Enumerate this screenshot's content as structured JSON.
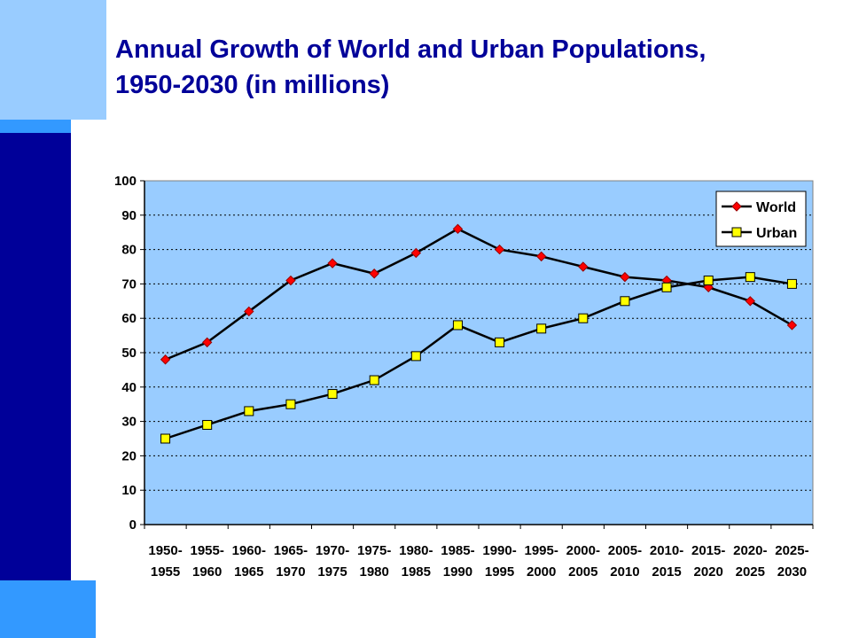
{
  "slide": {
    "title_line1": "Annual Growth of World and Urban Populations,",
    "title_line2": "1950-2030 (in millions)"
  },
  "colors": {
    "side_bar": "#000099",
    "block_light": "#99ccff",
    "block_mid": "#3399ff",
    "title": "#000099",
    "plot_bg": "#99ccff",
    "world_marker": "#ff0000",
    "urban_marker": "#ffff00",
    "line": "#000000"
  },
  "chart_data": {
    "type": "line",
    "title": "",
    "xlabel": "",
    "ylabel": "",
    "ylim": [
      0,
      100
    ],
    "yticks": [
      0,
      10,
      20,
      30,
      40,
      50,
      60,
      70,
      80,
      90,
      100
    ],
    "grid": "horizontal dotted",
    "legend_position": "top-right",
    "categories": [
      [
        "1950-",
        "1955"
      ],
      [
        "1955-",
        "1960"
      ],
      [
        "1960-",
        "1965"
      ],
      [
        "1965-",
        "1970"
      ],
      [
        "1970-",
        "1975"
      ],
      [
        "1975-",
        "1980"
      ],
      [
        "1980-",
        "1985"
      ],
      [
        "1985-",
        "1990"
      ],
      [
        "1990-",
        "1995"
      ],
      [
        "1995-",
        "2000"
      ],
      [
        "2000-",
        "2005"
      ],
      [
        "2005-",
        "2010"
      ],
      [
        "2010-",
        "2015"
      ],
      [
        "2015-",
        "2020"
      ],
      [
        "2020-",
        "2025"
      ],
      [
        "2025-",
        "2030"
      ]
    ],
    "series": [
      {
        "name": "World",
        "marker": "diamond",
        "values": [
          48,
          53,
          62,
          71,
          76,
          73,
          79,
          86,
          80,
          78,
          75,
          72,
          71,
          69,
          65,
          58
        ]
      },
      {
        "name": "Urban",
        "marker": "square",
        "values": [
          25,
          29,
          33,
          35,
          38,
          42,
          49,
          58,
          53,
          57,
          60,
          65,
          69,
          71,
          72,
          70
        ]
      }
    ]
  }
}
